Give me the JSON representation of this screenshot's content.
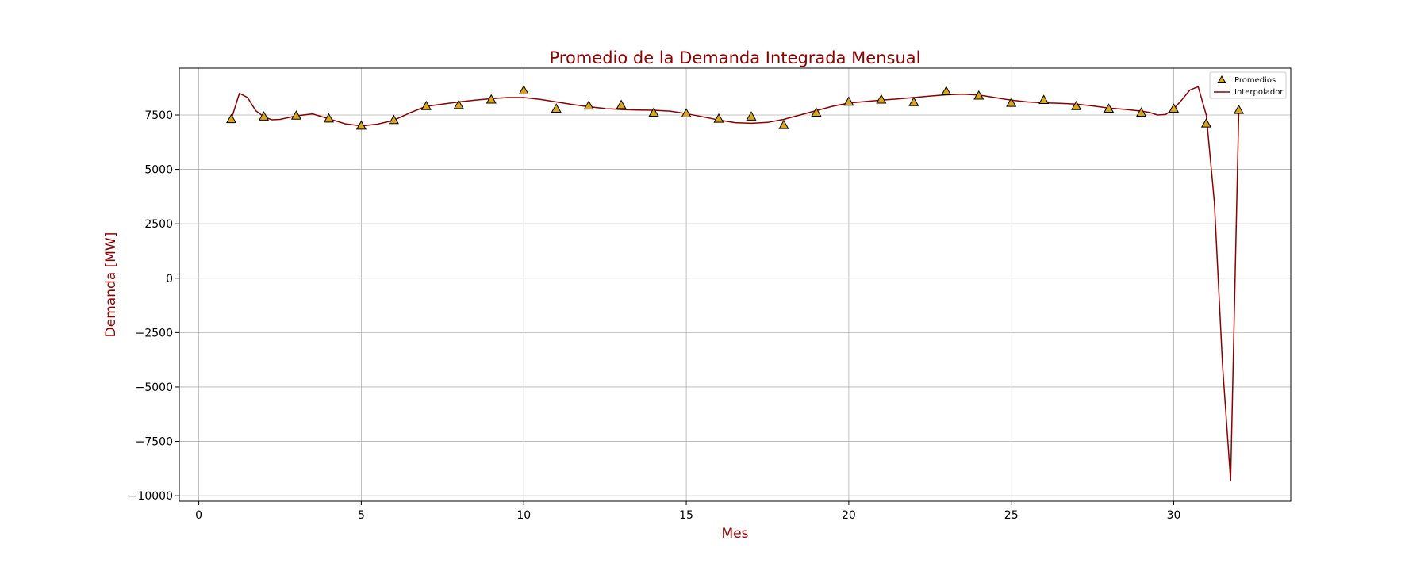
{
  "chart_data": {
    "type": "scatter",
    "title": "Promedio de la Demanda Integrada Mensual",
    "xlabel": "Mes",
    "ylabel": "Demanda [MW]",
    "xlim": [
      -0.6,
      33.6
    ],
    "ylim": [
      -10250,
      9650
    ],
    "xticks": [
      0,
      5,
      10,
      15,
      20,
      25,
      30
    ],
    "yticks": [
      -10000,
      -7500,
      -5000,
      -2500,
      0,
      2500,
      5000,
      7500
    ],
    "xtick_labels": [
      "0",
      "5",
      "10",
      "15",
      "20",
      "25",
      "30"
    ],
    "ytick_labels": [
      "−10000",
      "−7500",
      "−5000",
      "−2500",
      "0",
      "2500",
      "5000",
      "7500"
    ],
    "grid": true,
    "legend_position": "top-right",
    "colors": {
      "title": "#8b0000",
      "axis_label": "#8b0000",
      "line": "#8b0000",
      "marker_fill": "#daa520",
      "marker_edge": "#000000",
      "grid": "#b0b0b0"
    },
    "series": [
      {
        "name": "Promedios",
        "kind": "scatter",
        "marker": "triangle",
        "x": [
          1,
          2,
          3,
          4,
          5,
          6,
          7,
          8,
          9,
          10,
          11,
          12,
          13,
          14,
          15,
          16,
          17,
          18,
          19,
          20,
          21,
          22,
          23,
          24,
          25,
          26,
          27,
          28,
          29,
          30,
          31,
          32
        ],
        "y": [
          7300,
          7420,
          7460,
          7330,
          7000,
          7260,
          7900,
          7950,
          8200,
          8620,
          7780,
          7920,
          7950,
          7600,
          7560,
          7320,
          7420,
          7030,
          7600,
          8100,
          8200,
          8080,
          8580,
          8380,
          8050,
          8180,
          7900,
          7780,
          7600,
          7780,
          7100,
          7720
        ]
      },
      {
        "name": "Interpolador",
        "kind": "line",
        "x": [
          1,
          1.25,
          1.5,
          1.75,
          2,
          2.25,
          2.5,
          3,
          3.5,
          4,
          4.5,
          5,
          5.5,
          6,
          6.5,
          7,
          7.5,
          8,
          8.5,
          9,
          9.5,
          10,
          10.5,
          11,
          11.5,
          12,
          12.5,
          13,
          13.5,
          14,
          14.5,
          15,
          15.5,
          16,
          16.5,
          17,
          17.5,
          18,
          18.5,
          19,
          19.5,
          20,
          20.5,
          21,
          21.5,
          22,
          22.5,
          23,
          23.5,
          24,
          24.5,
          25,
          25.5,
          26,
          26.5,
          27,
          27.5,
          28,
          28.5,
          29,
          29.25,
          29.5,
          29.75,
          30,
          30.25,
          30.5,
          30.75,
          31,
          31.25,
          31.5,
          31.75,
          32
        ],
        "y": [
          7300,
          8500,
          8300,
          7700,
          7420,
          7280,
          7300,
          7460,
          7550,
          7330,
          7100,
          7000,
          7080,
          7260,
          7600,
          7900,
          8000,
          8100,
          8180,
          8250,
          8300,
          8300,
          8220,
          8100,
          7980,
          7880,
          7800,
          7750,
          7730,
          7720,
          7680,
          7560,
          7420,
          7270,
          7150,
          7120,
          7160,
          7300,
          7500,
          7700,
          7900,
          8050,
          8120,
          8180,
          8240,
          8300,
          8370,
          8430,
          8460,
          8420,
          8300,
          8180,
          8100,
          8060,
          8040,
          8000,
          7920,
          7820,
          7760,
          7680,
          7620,
          7500,
          7520,
          7780,
          8200,
          8650,
          8800,
          7500,
          3500,
          -4000,
          -9300,
          7720
        ]
      }
    ]
  }
}
